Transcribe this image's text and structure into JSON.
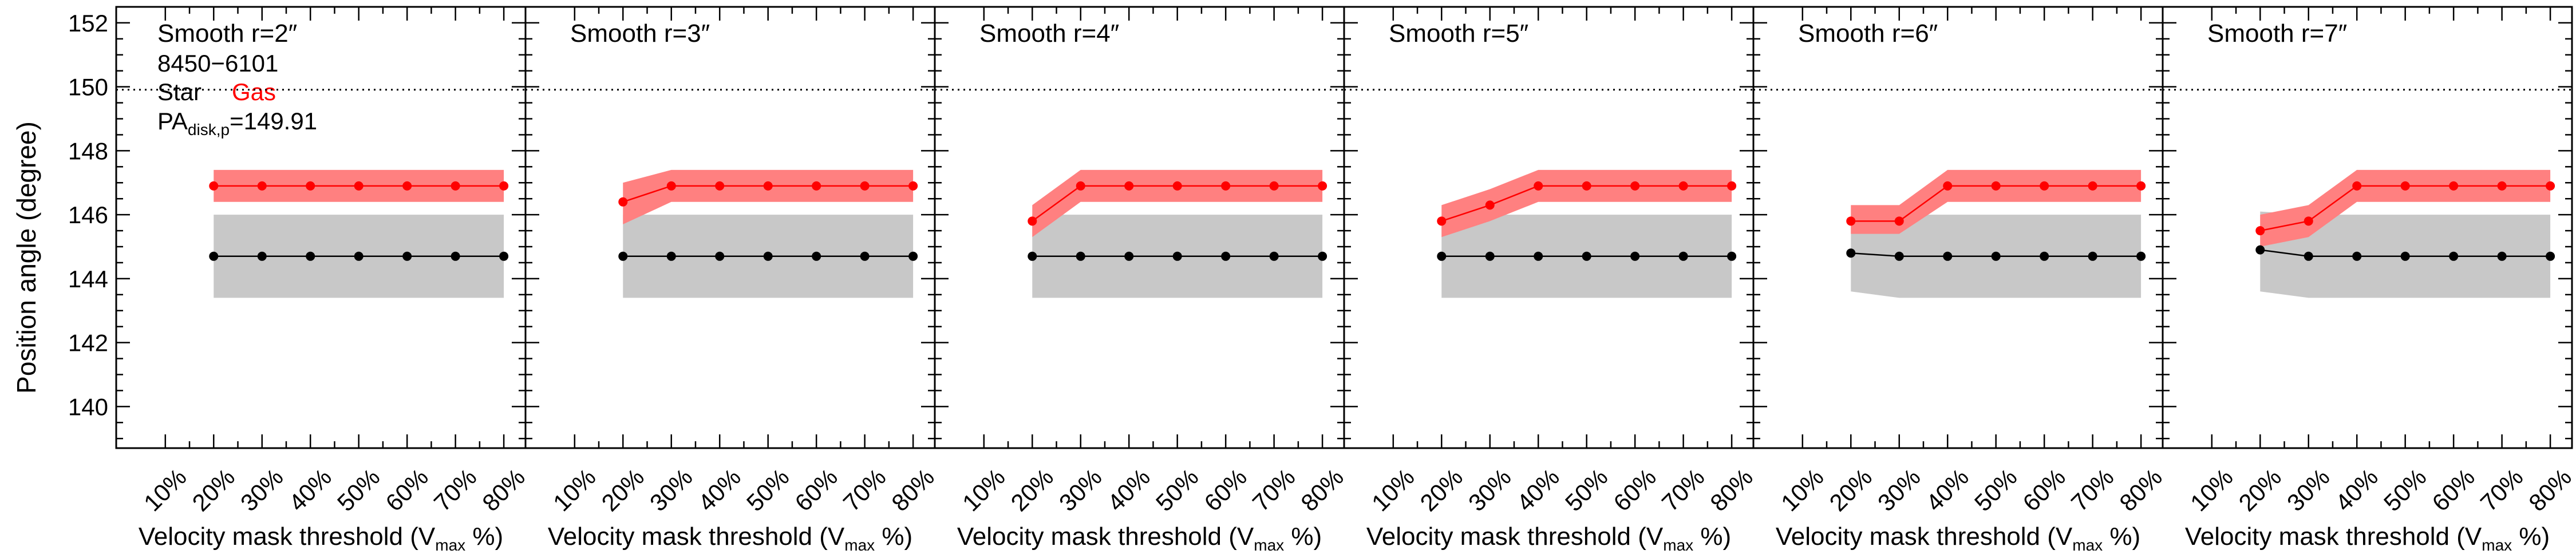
{
  "figure": {
    "ylabel": "Position angle (degree)",
    "xlabel_main": "Velocity mask threshold (V",
    "xlabel_sub": "max",
    "xlabel_tail": " %)",
    "galaxy_id": "8450−6101",
    "legend_star": "Star",
    "legend_gas": "Gas",
    "pa_main": "PA",
    "pa_sub": "disk,p",
    "pa_value": "=149.91"
  },
  "colors": {
    "star": "#000000",
    "gas": "#ff0000",
    "star_band": "#c8c8c8",
    "gas_band": "#ff8080",
    "reference_line": "#000000"
  },
  "chart_data": [
    {
      "type": "line",
      "title": "Smooth r=2″",
      "xlabel": "Velocity mask threshold (Vmax %)",
      "ylabel": "Position angle (degree)",
      "categories": [
        "10%",
        "20%",
        "30%",
        "40%",
        "50%",
        "60%",
        "70%",
        "80%"
      ],
      "ylim": [
        138.7,
        152.5
      ],
      "yticks": [
        140,
        142,
        144,
        146,
        148,
        150,
        152
      ],
      "reference_line": 149.91,
      "series": [
        {
          "name": "Star",
          "x": [
            20,
            30,
            40,
            50,
            60,
            70,
            80
          ],
          "values": [
            144.7,
            144.7,
            144.7,
            144.7,
            144.7,
            144.7,
            144.7
          ],
          "lower": [
            143.4,
            143.4,
            143.4,
            143.4,
            143.4,
            143.4,
            143.4
          ],
          "upper": [
            146.0,
            146.0,
            146.0,
            146.0,
            146.0,
            146.0,
            146.0
          ]
        },
        {
          "name": "Gas",
          "x": [
            20,
            30,
            40,
            50,
            60,
            70,
            80
          ],
          "values": [
            146.9,
            146.9,
            146.9,
            146.9,
            146.9,
            146.9,
            146.9
          ],
          "lower": [
            146.4,
            146.4,
            146.4,
            146.4,
            146.4,
            146.4,
            146.4
          ],
          "upper": [
            147.4,
            147.4,
            147.4,
            147.4,
            147.4,
            147.4,
            147.4
          ]
        }
      ]
    },
    {
      "type": "line",
      "title": "Smooth r=3″",
      "xlabel": "Velocity mask threshold (Vmax %)",
      "categories": [
        "10%",
        "20%",
        "30%",
        "40%",
        "50%",
        "60%",
        "70%",
        "80%"
      ],
      "ylim": [
        138.7,
        152.5
      ],
      "reference_line": 149.91,
      "series": [
        {
          "name": "Star",
          "x": [
            20,
            30,
            40,
            50,
            60,
            70,
            80
          ],
          "values": [
            144.7,
            144.7,
            144.7,
            144.7,
            144.7,
            144.7,
            144.7
          ],
          "lower": [
            143.4,
            143.4,
            143.4,
            143.4,
            143.4,
            143.4,
            143.4
          ],
          "upper": [
            146.0,
            146.0,
            146.0,
            146.0,
            146.0,
            146.0,
            146.0
          ]
        },
        {
          "name": "Gas",
          "x": [
            20,
            30,
            40,
            50,
            60,
            70,
            80
          ],
          "values": [
            146.4,
            146.9,
            146.9,
            146.9,
            146.9,
            146.9,
            146.9
          ],
          "lower": [
            145.7,
            146.4,
            146.4,
            146.4,
            146.4,
            146.4,
            146.4
          ],
          "upper": [
            147.0,
            147.4,
            147.4,
            147.4,
            147.4,
            147.4,
            147.4
          ]
        }
      ]
    },
    {
      "type": "line",
      "title": "Smooth r=4″",
      "xlabel": "Velocity mask threshold (Vmax %)",
      "categories": [
        "10%",
        "20%",
        "30%",
        "40%",
        "50%",
        "60%",
        "70%",
        "80%"
      ],
      "ylim": [
        138.7,
        152.5
      ],
      "reference_line": 149.91,
      "series": [
        {
          "name": "Star",
          "x": [
            20,
            30,
            40,
            50,
            60,
            70,
            80
          ],
          "values": [
            144.7,
            144.7,
            144.7,
            144.7,
            144.7,
            144.7,
            144.7
          ],
          "lower": [
            143.4,
            143.4,
            143.4,
            143.4,
            143.4,
            143.4,
            143.4
          ],
          "upper": [
            146.0,
            146.0,
            146.0,
            146.0,
            146.0,
            146.0,
            146.0
          ]
        },
        {
          "name": "Gas",
          "x": [
            20,
            30,
            40,
            50,
            60,
            70,
            80
          ],
          "values": [
            145.8,
            146.9,
            146.9,
            146.9,
            146.9,
            146.9,
            146.9
          ],
          "lower": [
            145.3,
            146.4,
            146.4,
            146.4,
            146.4,
            146.4,
            146.4
          ],
          "upper": [
            146.3,
            147.4,
            147.4,
            147.4,
            147.4,
            147.4,
            147.4
          ]
        }
      ]
    },
    {
      "type": "line",
      "title": "Smooth r=5″",
      "xlabel": "Velocity mask threshold (Vmax %)",
      "categories": [
        "10%",
        "20%",
        "30%",
        "40%",
        "50%",
        "60%",
        "70%",
        "80%"
      ],
      "ylim": [
        138.7,
        152.5
      ],
      "reference_line": 149.91,
      "series": [
        {
          "name": "Star",
          "x": [
            20,
            30,
            40,
            50,
            60,
            70,
            80
          ],
          "values": [
            144.7,
            144.7,
            144.7,
            144.7,
            144.7,
            144.7,
            144.7
          ],
          "lower": [
            143.4,
            143.4,
            143.4,
            143.4,
            143.4,
            143.4,
            143.4
          ],
          "upper": [
            146.0,
            146.0,
            146.0,
            146.0,
            146.0,
            146.0,
            146.0
          ]
        },
        {
          "name": "Gas",
          "x": [
            20,
            30,
            40,
            50,
            60,
            70,
            80
          ],
          "values": [
            145.8,
            146.3,
            146.9,
            146.9,
            146.9,
            146.9,
            146.9
          ],
          "lower": [
            145.3,
            145.8,
            146.4,
            146.4,
            146.4,
            146.4,
            146.4
          ],
          "upper": [
            146.3,
            146.8,
            147.4,
            147.4,
            147.4,
            147.4,
            147.4
          ]
        }
      ]
    },
    {
      "type": "line",
      "title": "Smooth r=6″",
      "xlabel": "Velocity mask threshold (Vmax %)",
      "categories": [
        "10%",
        "20%",
        "30%",
        "40%",
        "50%",
        "60%",
        "70%",
        "80%"
      ],
      "ylim": [
        138.7,
        152.5
      ],
      "reference_line": 149.91,
      "series": [
        {
          "name": "Star",
          "x": [
            20,
            30,
            40,
            50,
            60,
            70,
            80
          ],
          "values": [
            144.8,
            144.7,
            144.7,
            144.7,
            144.7,
            144.7,
            144.7
          ],
          "lower": [
            143.6,
            143.4,
            143.4,
            143.4,
            143.4,
            143.4,
            143.4
          ],
          "upper": [
            146.0,
            146.0,
            146.0,
            146.0,
            146.0,
            146.0,
            146.0
          ]
        },
        {
          "name": "Gas",
          "x": [
            20,
            30,
            40,
            50,
            60,
            70,
            80
          ],
          "values": [
            145.8,
            145.8,
            146.9,
            146.9,
            146.9,
            146.9,
            146.9
          ],
          "lower": [
            145.4,
            145.4,
            146.4,
            146.4,
            146.4,
            146.4,
            146.4
          ],
          "upper": [
            146.3,
            146.3,
            147.4,
            147.4,
            147.4,
            147.4,
            147.4
          ]
        }
      ]
    },
    {
      "type": "line",
      "title": "Smooth r=7″",
      "xlabel": "Velocity mask threshold (Vmax %)",
      "categories": [
        "10%",
        "20%",
        "30%",
        "40%",
        "50%",
        "60%",
        "70%",
        "80%"
      ],
      "ylim": [
        138.7,
        152.5
      ],
      "reference_line": 149.91,
      "series": [
        {
          "name": "Star",
          "x": [
            20,
            30,
            40,
            50,
            60,
            70,
            80
          ],
          "values": [
            144.9,
            144.7,
            144.7,
            144.7,
            144.7,
            144.7,
            144.7
          ],
          "lower": [
            143.6,
            143.4,
            143.4,
            143.4,
            143.4,
            143.4,
            143.4
          ],
          "upper": [
            146.1,
            146.0,
            146.0,
            146.0,
            146.0,
            146.0,
            146.0
          ]
        },
        {
          "name": "Gas",
          "x": [
            20,
            30,
            40,
            50,
            60,
            70,
            80
          ],
          "values": [
            145.5,
            145.8,
            146.9,
            146.9,
            146.9,
            146.9,
            146.9
          ],
          "lower": [
            145.0,
            145.3,
            146.4,
            146.4,
            146.4,
            146.4,
            146.4
          ],
          "upper": [
            146.0,
            146.3,
            147.4,
            147.4,
            147.4,
            147.4,
            147.4
          ]
        }
      ]
    }
  ]
}
